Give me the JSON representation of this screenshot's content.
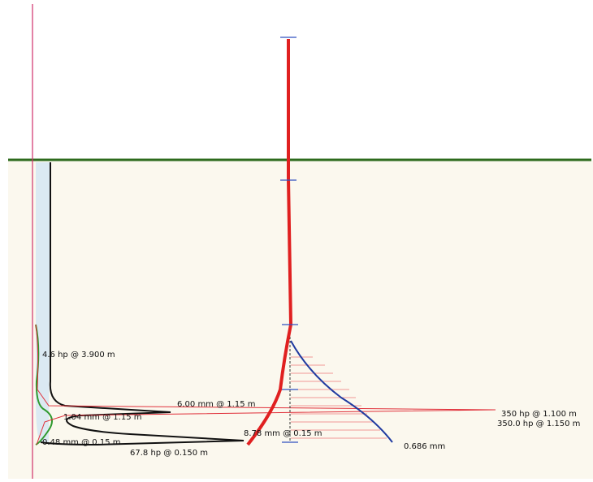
{
  "labels": {
    "upper_left": "4.6 hp @ 3.900 m",
    "deflection_max": "6.00 mm @ 1.15 m",
    "deflection_mid": "1.04 mm @ 1.15 m",
    "deflection_low": "0.48 mm @ 0.15 m",
    "hp_low": "67.8 hp @ 0.150 m",
    "center": "8.78 mm @ 0.15 m",
    "right_top": "350 hp @ 1.100 m",
    "right_bottom": "350.0 hp @ 1.150 m",
    "blue_end": "0.686 mm"
  }
}
